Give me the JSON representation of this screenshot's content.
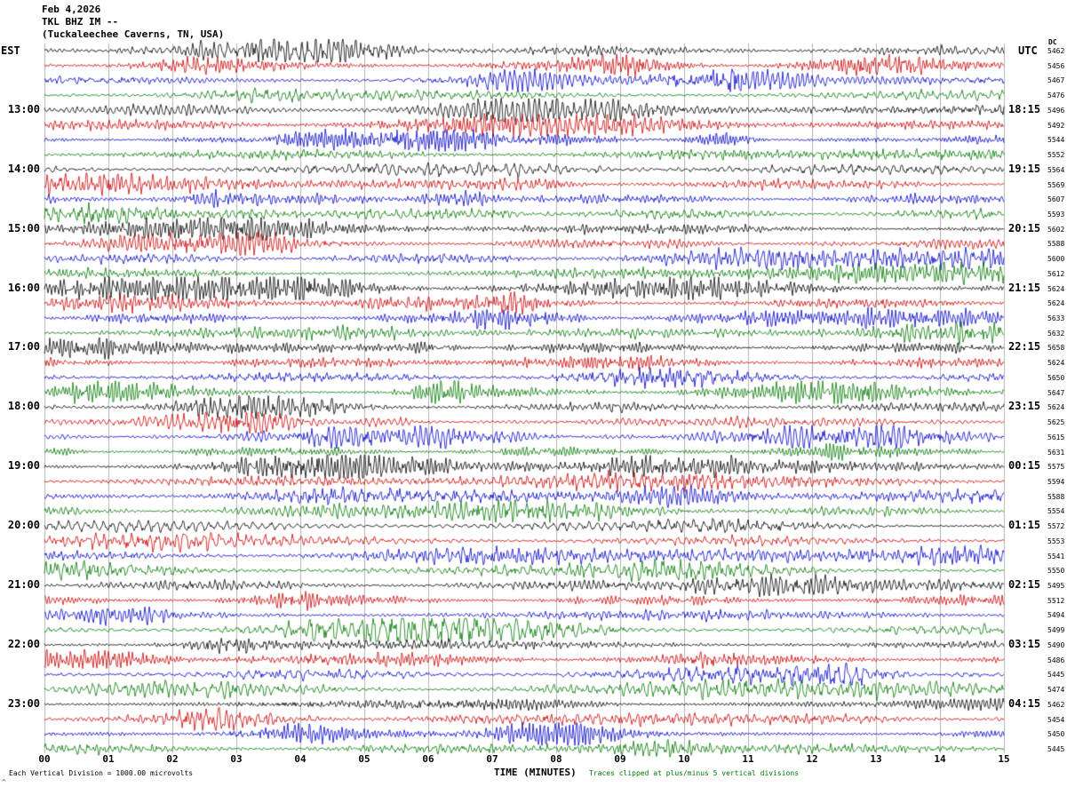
{
  "header": {
    "date": "Feb 4,2026",
    "station": "TKL BHZ IM --",
    "location": "(Tuckaleechee Caverns, TN, USA)"
  },
  "axes": {
    "left_label": "EST",
    "right_label": "UTC",
    "dc_label": "DC",
    "x_label": "TIME (MINUTES)",
    "x_ticks": [
      "00",
      "01",
      "02",
      "03",
      "04",
      "05",
      "06",
      "07",
      "08",
      "09",
      "10",
      "11",
      "12",
      "13",
      "14",
      "15"
    ]
  },
  "footer": {
    "left_note": "Each Vertical Division = 1000.00 microvolts",
    "right_note": "Traces clipped at plus/minus 5 vertical divisions",
    "corner_mark": "^"
  },
  "chart_data": {
    "type": "line",
    "title": "TKL BHZ IM -- (Tuckaleechee Caverns, TN, USA) helicorder seismogram",
    "x_axis": {
      "label": "TIME (MINUTES)",
      "min": 0,
      "max": 15,
      "tick_interval_minutes": 1,
      "grid": true
    },
    "minutes_per_trace": 15,
    "traces_per_hour": 4,
    "trace_color_cycle": [
      "black",
      "red",
      "blue",
      "green"
    ],
    "colors": {
      "black": "#000000",
      "red": "#cc0000",
      "blue": "#0000cc",
      "green": "#007700"
    },
    "grid_color": "#b3b3b3",
    "clip_divisions": 5,
    "seed": 42,
    "rows": [
      {
        "est": "",
        "utc": "",
        "dc": "5462",
        "color": "black"
      },
      {
        "est": "",
        "utc": "",
        "dc": "5456",
        "color": "red"
      },
      {
        "est": "",
        "utc": "",
        "dc": "5467",
        "color": "blue"
      },
      {
        "est": "",
        "utc": "",
        "dc": "5476",
        "color": "green"
      },
      {
        "est": "13:00",
        "utc": "18:15",
        "dc": "5496",
        "color": "black"
      },
      {
        "est": "",
        "utc": "",
        "dc": "5492",
        "color": "red"
      },
      {
        "est": "",
        "utc": "",
        "dc": "5544",
        "color": "blue"
      },
      {
        "est": "",
        "utc": "",
        "dc": "5552",
        "color": "green"
      },
      {
        "est": "14:00",
        "utc": "19:15",
        "dc": "5564",
        "color": "black"
      },
      {
        "est": "",
        "utc": "",
        "dc": "5569",
        "color": "red"
      },
      {
        "est": "",
        "utc": "",
        "dc": "5607",
        "color": "blue"
      },
      {
        "est": "",
        "utc": "",
        "dc": "5593",
        "color": "green"
      },
      {
        "est": "15:00",
        "utc": "20:15",
        "dc": "5602",
        "color": "black"
      },
      {
        "est": "",
        "utc": "",
        "dc": "5588",
        "color": "red"
      },
      {
        "est": "",
        "utc": "",
        "dc": "5600",
        "color": "blue"
      },
      {
        "est": "",
        "utc": "",
        "dc": "5612",
        "color": "green"
      },
      {
        "est": "16:00",
        "utc": "21:15",
        "dc": "5624",
        "color": "black"
      },
      {
        "est": "",
        "utc": "",
        "dc": "5624",
        "color": "red"
      },
      {
        "est": "",
        "utc": "",
        "dc": "5633",
        "color": "blue"
      },
      {
        "est": "",
        "utc": "",
        "dc": "5632",
        "color": "green"
      },
      {
        "est": "17:00",
        "utc": "22:15",
        "dc": "5658",
        "color": "black"
      },
      {
        "est": "",
        "utc": "",
        "dc": "5624",
        "color": "red"
      },
      {
        "est": "",
        "utc": "",
        "dc": "5650",
        "color": "blue"
      },
      {
        "est": "",
        "utc": "",
        "dc": "5647",
        "color": "green"
      },
      {
        "est": "18:00",
        "utc": "23:15",
        "dc": "5624",
        "color": "black"
      },
      {
        "est": "",
        "utc": "",
        "dc": "5625",
        "color": "red"
      },
      {
        "est": "",
        "utc": "",
        "dc": "5615",
        "color": "blue"
      },
      {
        "est": "",
        "utc": "",
        "dc": "5631",
        "color": "green"
      },
      {
        "est": "19:00",
        "utc": "00:15",
        "dc": "5575",
        "color": "black"
      },
      {
        "est": "",
        "utc": "",
        "dc": "5594",
        "color": "red"
      },
      {
        "est": "",
        "utc": "",
        "dc": "5588",
        "color": "blue"
      },
      {
        "est": "",
        "utc": "",
        "dc": "5554",
        "color": "green"
      },
      {
        "est": "20:00",
        "utc": "01:15",
        "dc": "5572",
        "color": "black"
      },
      {
        "est": "",
        "utc": "",
        "dc": "5553",
        "color": "red"
      },
      {
        "est": "",
        "utc": "",
        "dc": "5541",
        "color": "blue"
      },
      {
        "est": "",
        "utc": "",
        "dc": "5550",
        "color": "green"
      },
      {
        "est": "21:00",
        "utc": "02:15",
        "dc": "5495",
        "color": "black"
      },
      {
        "est": "",
        "utc": "",
        "dc": "5512",
        "color": "red"
      },
      {
        "est": "",
        "utc": "",
        "dc": "5494",
        "color": "blue"
      },
      {
        "est": "",
        "utc": "",
        "dc": "5499",
        "color": "green"
      },
      {
        "est": "22:00",
        "utc": "03:15",
        "dc": "5490",
        "color": "black"
      },
      {
        "est": "",
        "utc": "",
        "dc": "5486",
        "color": "red"
      },
      {
        "est": "",
        "utc": "",
        "dc": "5445",
        "color": "blue"
      },
      {
        "est": "",
        "utc": "",
        "dc": "5474",
        "color": "green"
      },
      {
        "est": "23:00",
        "utc": "04:15",
        "dc": "5462",
        "color": "black"
      },
      {
        "est": "",
        "utc": "",
        "dc": "5454",
        "color": "red"
      },
      {
        "est": "",
        "utc": "",
        "dc": "5450",
        "color": "blue"
      },
      {
        "est": "",
        "utc": "",
        "dc": "5445",
        "color": "green"
      }
    ]
  }
}
